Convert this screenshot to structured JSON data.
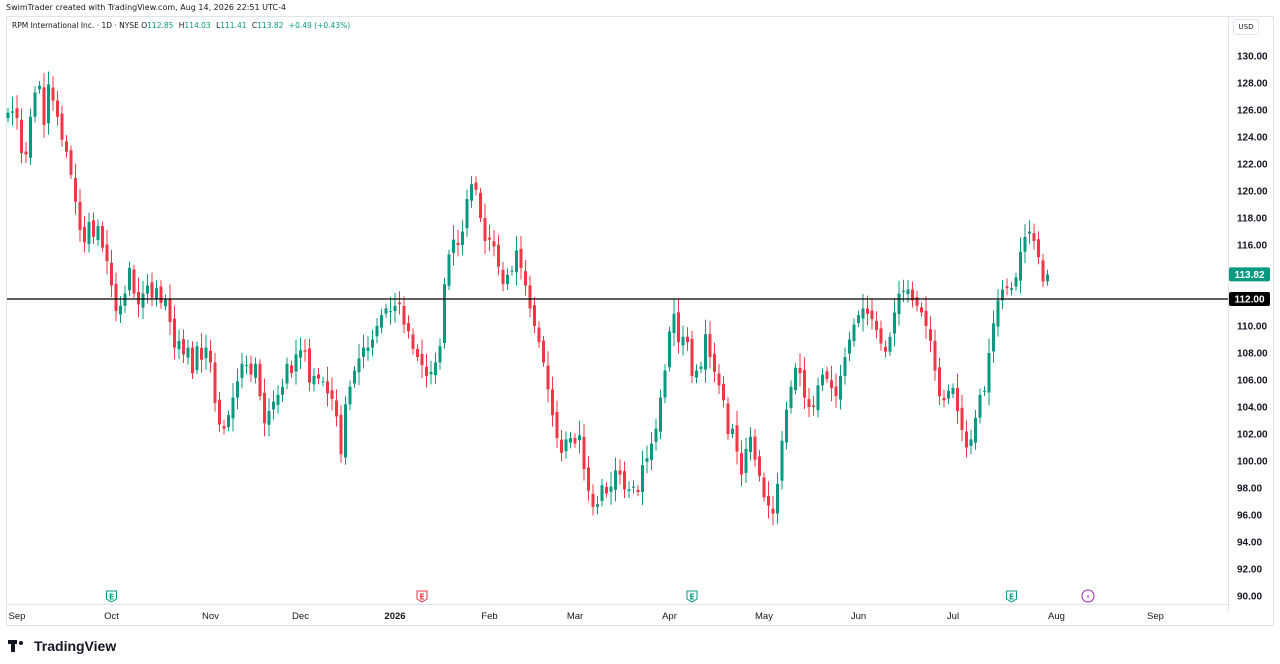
{
  "caption": "SwimTrader created with TradingView.com, Aug 14, 2026 22:51 UTC-4",
  "legend": {
    "symbol": "RPM International Inc. · 1D · NYSE",
    "open_label": "O",
    "open": "112.85",
    "high_label": "H",
    "high": "114.03",
    "low_label": "L",
    "low": "111.41",
    "close_label": "C",
    "close": "113.82",
    "change": "+0.49 (+0.43%)"
  },
  "currency": "USD",
  "brand": "TradingView",
  "colors": {
    "up": "#089981",
    "down": "#f23645",
    "last_price_bg": "#089981",
    "level_line": "#000000",
    "earnings_up": "#089981",
    "earnings_down": "#f23645",
    "dividend": "#9c27b0"
  },
  "chart_data": {
    "type": "candlestick",
    "yaxis": {
      "min": 90,
      "max": 130,
      "ticks": [
        "130.00",
        "128.00",
        "126.00",
        "124.00",
        "122.00",
        "120.00",
        "118.00",
        "116.00",
        "114.00",
        "112.00",
        "110.00",
        "108.00",
        "106.00",
        "104.00",
        "102.00",
        "100.00",
        "98.00",
        "96.00",
        "94.00",
        "92.00",
        "90.00"
      ]
    },
    "xaxis_ticks": [
      {
        "label": "Sep",
        "idx": 2,
        "bold": false
      },
      {
        "label": "Oct",
        "idx": 23,
        "bold": false
      },
      {
        "label": "Nov",
        "idx": 45,
        "bold": false
      },
      {
        "label": "Dec",
        "idx": 65,
        "bold": false
      },
      {
        "label": "2026",
        "idx": 86,
        "bold": true
      },
      {
        "label": "Feb",
        "idx": 107,
        "bold": false
      },
      {
        "label": "Mar",
        "idx": 126,
        "bold": false
      },
      {
        "label": "Apr",
        "idx": 147,
        "bold": false
      },
      {
        "label": "May",
        "idx": 168,
        "bold": false
      },
      {
        "label": "Jun",
        "idx": 189,
        "bold": false
      },
      {
        "label": "Jul",
        "idx": 210,
        "bold": false
      },
      {
        "label": "Aug",
        "idx": 233,
        "bold": false
      },
      {
        "label": "Sep",
        "idx": 255,
        "bold": false
      }
    ],
    "horizontal_line": {
      "price": 112.0,
      "label": "112.00"
    },
    "last_price": {
      "price": 113.82,
      "label": "113.82"
    },
    "events": [
      {
        "idx": 23,
        "type": "earnings",
        "glyph": "E",
        "color": "up"
      },
      {
        "idx": 92,
        "type": "earnings",
        "glyph": "E",
        "color": "down"
      },
      {
        "idx": 152,
        "type": "earnings",
        "glyph": "E",
        "color": "up"
      },
      {
        "idx": 223,
        "type": "earnings",
        "glyph": "E",
        "color": "up"
      },
      {
        "idx": 240,
        "type": "dividend",
        "glyph": "⚡",
        "color": "dividend"
      }
    ],
    "closes": [
      125.8,
      125.9,
      125.4,
      122.8,
      122.7,
      125.5,
      127.3,
      127.8,
      124.9,
      127.9,
      126.7,
      125.5,
      123.8,
      122.9,
      121.2,
      119.2,
      117.1,
      116.2,
      117.7,
      116.6,
      117.4,
      115.8,
      114.8,
      113.0,
      111.1,
      111.5,
      112.4,
      114.3,
      112.4,
      111.6,
      112.4,
      113.0,
      112.1,
      112.8,
      111.7,
      112.0,
      110.3,
      108.4,
      108.9,
      107.9,
      108.4,
      106.5,
      108.5,
      107.5,
      108.4,
      107.3,
      104.3,
      102.7,
      102.4,
      103.4,
      104.7,
      105.9,
      107.2,
      107.1,
      106.4,
      107.2,
      104.8,
      102.8,
      103.7,
      104.4,
      104.9,
      105.5,
      107.2,
      106.5,
      107.9,
      108.2,
      108.1,
      105.8,
      106.3,
      106.1,
      105.9,
      105.0,
      104.6,
      103.3,
      100.5,
      104.2,
      105.5,
      106.7,
      107.6,
      108.4,
      108.4,
      109.0,
      110.0,
      110.8,
      111.3,
      111.1,
      111.5,
      111.6,
      110.1,
      109.6,
      108.3,
      107.7,
      107.1,
      106.3,
      106.6,
      107.3,
      108.5,
      113.1,
      115.3,
      116.4,
      116.0,
      117.0,
      119.4,
      120.5,
      120.1,
      118.0,
      116.3,
      116.4,
      115.9,
      114.4,
      113.1,
      113.8,
      114.1,
      115.6,
      114.3,
      113.0,
      111.3,
      110.0,
      108.8,
      107.3,
      105.3,
      103.4,
      101.7,
      100.6,
      101.6,
      101.7,
      101.3,
      101.9,
      99.4,
      97.8,
      96.6,
      96.8,
      98.2,
      97.6,
      98.1,
      99.3,
      99.0,
      97.9,
      97.9,
      98.1,
      97.7,
      99.7,
      100.2,
      101.3,
      102.4,
      104.7,
      106.7,
      109.6,
      110.9,
      108.8,
      109.2,
      108.8,
      106.3,
      106.7,
      107.0,
      109.4,
      107.7,
      106.6,
      105.6,
      104.5,
      102.0,
      102.4,
      100.7,
      99.0,
      100.9,
      101.8,
      100.1,
      98.9,
      97.3,
      96.7,
      96.1,
      98.3,
      101.5,
      103.8,
      105.5,
      106.9,
      106.5,
      104.7,
      104.0,
      104.0,
      105.6,
      106.4,
      106.1,
      105.4,
      104.8,
      106.3,
      107.7,
      109.0,
      110.1,
      110.8,
      111.3,
      110.9,
      110.5,
      109.7,
      108.7,
      108.1,
      109.2,
      111.0,
      112.4,
      112.6,
      112.7,
      111.9,
      111.5,
      111.0,
      110.0,
      108.9,
      106.7,
      104.8,
      104.5,
      105.2,
      105.4,
      103.7,
      102.3,
      101.0,
      101.6,
      103.2,
      104.9,
      105.2,
      108.0,
      110.2,
      111.9,
      112.7,
      112.8,
      112.8,
      113.6,
      115.5,
      116.6,
      117.0,
      116.3,
      115.1,
      113.3,
      113.82
    ],
    "ohlc_note": ""
  }
}
